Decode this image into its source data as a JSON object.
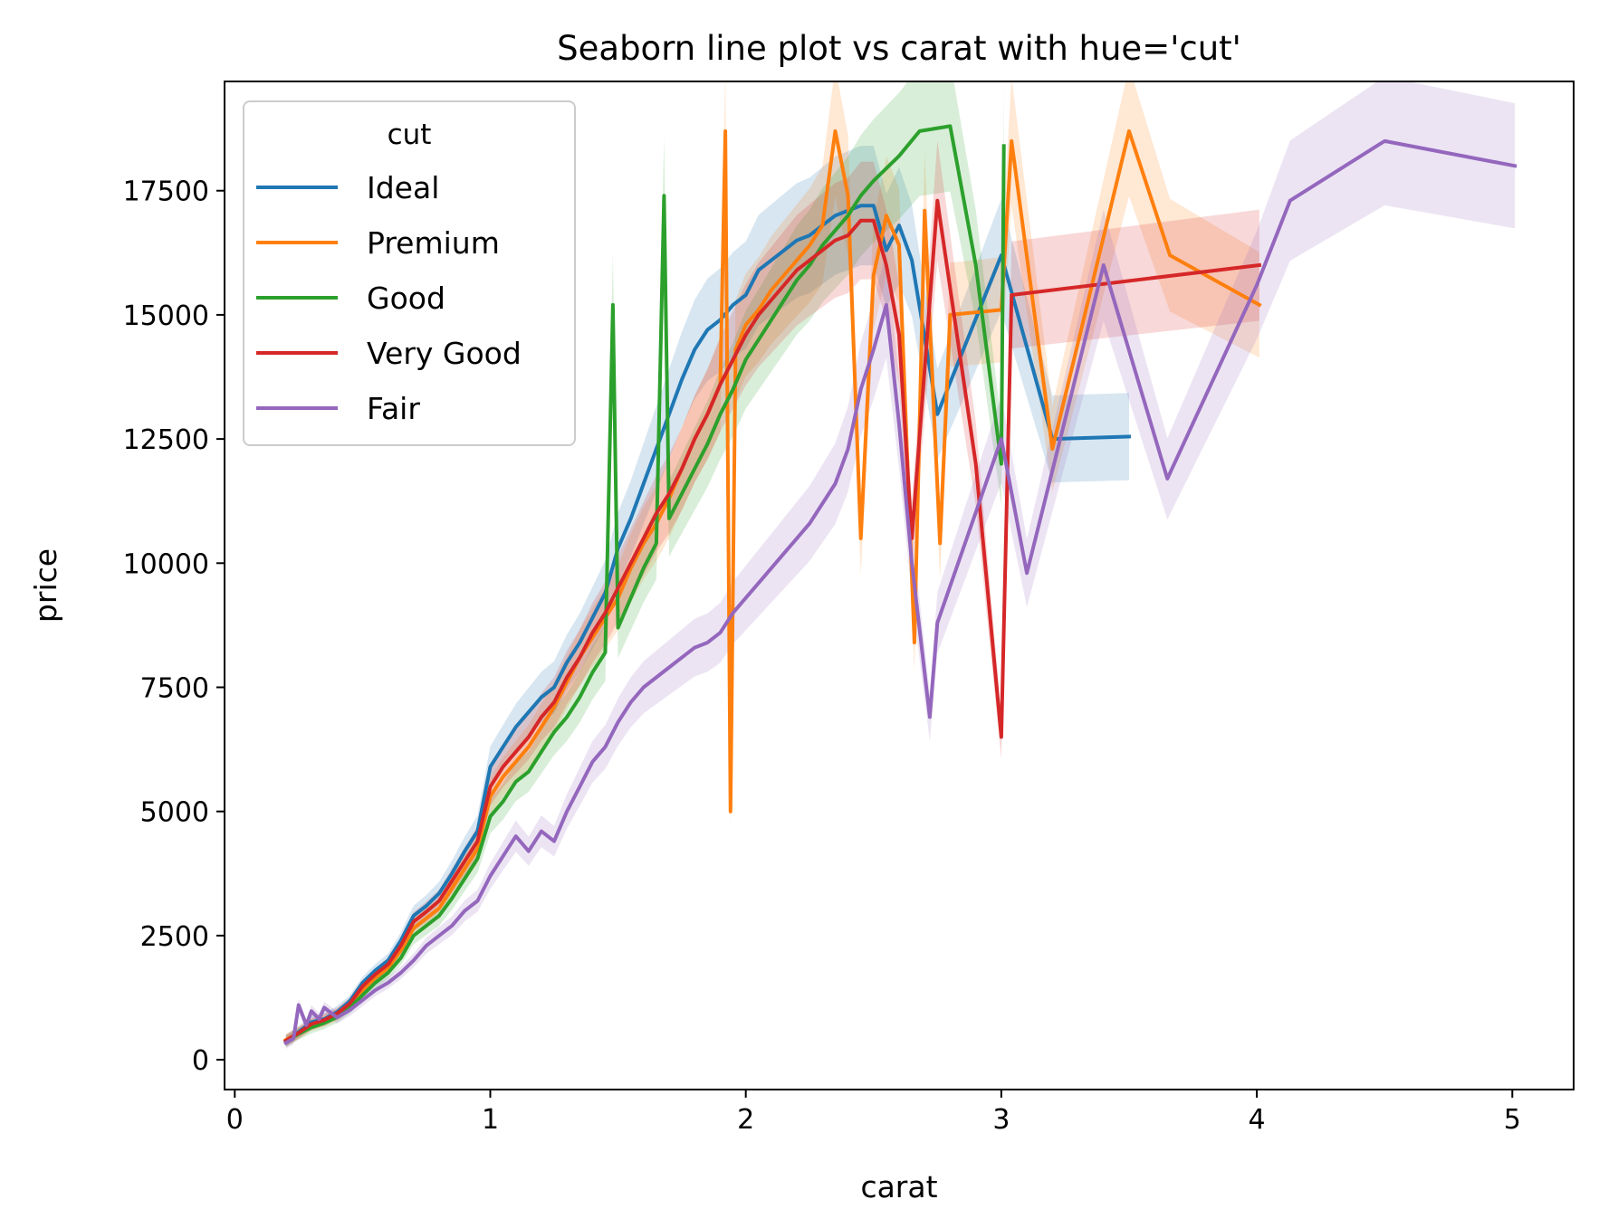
{
  "chart_data": {
    "type": "line",
    "title": "Seaborn line plot vs carat with hue='cut'",
    "xlabel": "carat",
    "ylabel": "price",
    "xlim": [
      -0.04,
      5.24
    ],
    "ylim": [
      -600,
      19700
    ],
    "xticks": [
      0,
      1,
      2,
      3,
      4,
      5
    ],
    "yticks": [
      0,
      2500,
      5000,
      7500,
      10000,
      12500,
      15000,
      17500
    ],
    "grid": false,
    "legend": {
      "title": "cut",
      "placement": "top-left"
    },
    "series": [
      {
        "name": "Ideal",
        "color": "#1f77b4",
        "x": [
          0.2,
          0.25,
          0.3,
          0.35,
          0.4,
          0.45,
          0.5,
          0.55,
          0.6,
          0.65,
          0.7,
          0.75,
          0.8,
          0.85,
          0.9,
          0.95,
          1.0,
          1.05,
          1.1,
          1.15,
          1.2,
          1.25,
          1.3,
          1.35,
          1.4,
          1.45,
          1.5,
          1.55,
          1.6,
          1.65,
          1.7,
          1.75,
          1.8,
          1.85,
          1.9,
          1.95,
          2.0,
          2.05,
          2.1,
          2.15,
          2.2,
          2.25,
          2.3,
          2.35,
          2.4,
          2.45,
          2.5,
          2.55,
          2.6,
          2.65,
          2.75,
          3.0,
          3.2,
          3.5
        ],
        "y": [
          380,
          560,
          760,
          820,
          960,
          1180,
          1550,
          1800,
          2000,
          2400,
          2900,
          3100,
          3350,
          3750,
          4200,
          4600,
          5900,
          6300,
          6700,
          7000,
          7300,
          7500,
          8000,
          8400,
          8900,
          9400,
          10300,
          10900,
          11600,
          12300,
          13000,
          13700,
          14300,
          14700,
          14900,
          15200,
          15400,
          15900,
          16100,
          16300,
          16500,
          16600,
          16800,
          17000,
          17100,
          17200,
          17200,
          16300,
          16800,
          16100,
          13000,
          16200,
          12500,
          12550
        ]
      },
      {
        "name": "Premium",
        "color": "#ff7f0e",
        "x": [
          0.2,
          0.25,
          0.3,
          0.35,
          0.4,
          0.45,
          0.5,
          0.55,
          0.6,
          0.65,
          0.7,
          0.75,
          0.8,
          0.85,
          0.9,
          0.95,
          1.0,
          1.05,
          1.1,
          1.15,
          1.2,
          1.25,
          1.3,
          1.35,
          1.4,
          1.45,
          1.5,
          1.55,
          1.6,
          1.65,
          1.7,
          1.75,
          1.8,
          1.85,
          1.9,
          1.92,
          1.94,
          1.96,
          2.0,
          2.05,
          2.1,
          2.15,
          2.2,
          2.25,
          2.3,
          2.35,
          2.4,
          2.45,
          2.5,
          2.55,
          2.6,
          2.66,
          2.7,
          2.76,
          2.8,
          3.0,
          3.04,
          3.2,
          3.5,
          3.66,
          4.01
        ],
        "y": [
          400,
          540,
          700,
          790,
          900,
          1100,
          1400,
          1650,
          1850,
          2200,
          2650,
          2850,
          3050,
          3450,
          3850,
          4250,
          5300,
          5700,
          6000,
          6300,
          6700,
          7100,
          7600,
          8100,
          8500,
          8900,
          9300,
          9900,
          10400,
          10800,
          11300,
          11900,
          12500,
          13000,
          13600,
          18700,
          5000,
          14300,
          14800,
          15100,
          15500,
          15800,
          16100,
          16400,
          16800,
          18700,
          17400,
          10500,
          15800,
          17000,
          16400,
          8400,
          17100,
          10400,
          15000,
          15100,
          18500,
          12300,
          18700,
          16200,
          15200
        ]
      },
      {
        "name": "Good",
        "color": "#2ca02c",
        "x": [
          0.2,
          0.25,
          0.3,
          0.35,
          0.4,
          0.45,
          0.5,
          0.55,
          0.6,
          0.65,
          0.7,
          0.75,
          0.8,
          0.85,
          0.9,
          0.95,
          1.0,
          1.05,
          1.1,
          1.15,
          1.2,
          1.25,
          1.3,
          1.35,
          1.4,
          1.45,
          1.48,
          1.5,
          1.55,
          1.6,
          1.65,
          1.68,
          1.7,
          1.75,
          1.8,
          1.85,
          1.9,
          1.95,
          2.0,
          2.05,
          2.1,
          2.15,
          2.2,
          2.25,
          2.3,
          2.35,
          2.4,
          2.45,
          2.5,
          2.6,
          2.68,
          2.8,
          2.9,
          3.0,
          3.01
        ],
        "y": [
          370,
          520,
          650,
          740,
          860,
          1050,
          1300,
          1550,
          1750,
          2050,
          2500,
          2700,
          2900,
          3250,
          3650,
          4050,
          4900,
          5200,
          5600,
          5800,
          6200,
          6600,
          6900,
          7300,
          7800,
          8200,
          15200,
          8700,
          9300,
          9900,
          10400,
          17400,
          10900,
          11400,
          11900,
          12400,
          13000,
          13500,
          14100,
          14500,
          14900,
          15300,
          15700,
          16000,
          16400,
          16700,
          17000,
          17400,
          17700,
          18200,
          18700,
          18800,
          16000,
          12000,
          18400
        ]
      },
      {
        "name": "Very Good",
        "color": "#d62728",
        "x": [
          0.2,
          0.25,
          0.3,
          0.35,
          0.4,
          0.45,
          0.5,
          0.55,
          0.6,
          0.65,
          0.7,
          0.75,
          0.8,
          0.85,
          0.9,
          0.95,
          1.0,
          1.05,
          1.1,
          1.15,
          1.2,
          1.25,
          1.3,
          1.35,
          1.4,
          1.45,
          1.5,
          1.55,
          1.6,
          1.65,
          1.7,
          1.75,
          1.8,
          1.85,
          1.9,
          1.95,
          2.0,
          2.05,
          2.1,
          2.15,
          2.2,
          2.25,
          2.3,
          2.35,
          2.4,
          2.45,
          2.5,
          2.55,
          2.6,
          2.65,
          2.75,
          2.9,
          3.0,
          3.04,
          4.01
        ],
        "y": [
          380,
          540,
          720,
          800,
          930,
          1130,
          1480,
          1720,
          1920,
          2300,
          2780,
          2980,
          3200,
          3600,
          4000,
          4400,
          5500,
          5900,
          6200,
          6500,
          6900,
          7200,
          7700,
          8100,
          8600,
          9000,
          9500,
          10000,
          10500,
          11000,
          11400,
          11900,
          12500,
          13000,
          13600,
          14100,
          14600,
          15000,
          15300,
          15600,
          15900,
          16100,
          16300,
          16500,
          16600,
          16900,
          16900,
          16000,
          14600,
          10500,
          17300,
          12000,
          6500,
          15400,
          16000
        ]
      },
      {
        "name": "Fair",
        "color": "#9467bd",
        "x": [
          0.2,
          0.23,
          0.25,
          0.28,
          0.3,
          0.33,
          0.35,
          0.4,
          0.45,
          0.5,
          0.55,
          0.6,
          0.65,
          0.7,
          0.75,
          0.8,
          0.85,
          0.9,
          0.95,
          1.0,
          1.05,
          1.1,
          1.15,
          1.2,
          1.25,
          1.3,
          1.35,
          1.4,
          1.45,
          1.5,
          1.55,
          1.6,
          1.65,
          1.7,
          1.75,
          1.8,
          1.85,
          1.9,
          1.95,
          2.0,
          2.05,
          2.1,
          2.15,
          2.2,
          2.25,
          2.3,
          2.35,
          2.4,
          2.45,
          2.5,
          2.55,
          2.6,
          2.65,
          2.72,
          2.75,
          3.0,
          3.1,
          3.4,
          3.65,
          4.0,
          4.13,
          4.5,
          5.01
        ],
        "y": [
          340,
          430,
          1100,
          700,
          980,
          820,
          1050,
          850,
          1000,
          1200,
          1400,
          1550,
          1750,
          2000,
          2300,
          2500,
          2700,
          3000,
          3200,
          3700,
          4100,
          4500,
          4200,
          4600,
          4400,
          5000,
          5500,
          6000,
          6300,
          6800,
          7200,
          7500,
          7700,
          7900,
          8100,
          8300,
          8400,
          8600,
          9000,
          9300,
          9600,
          9900,
          10200,
          10500,
          10800,
          11200,
          11600,
          12300,
          13500,
          14300,
          15200,
          12800,
          10000,
          6900,
          8800,
          12500,
          9800,
          16000,
          11700,
          15600,
          17300,
          18500,
          18000
        ]
      }
    ]
  }
}
